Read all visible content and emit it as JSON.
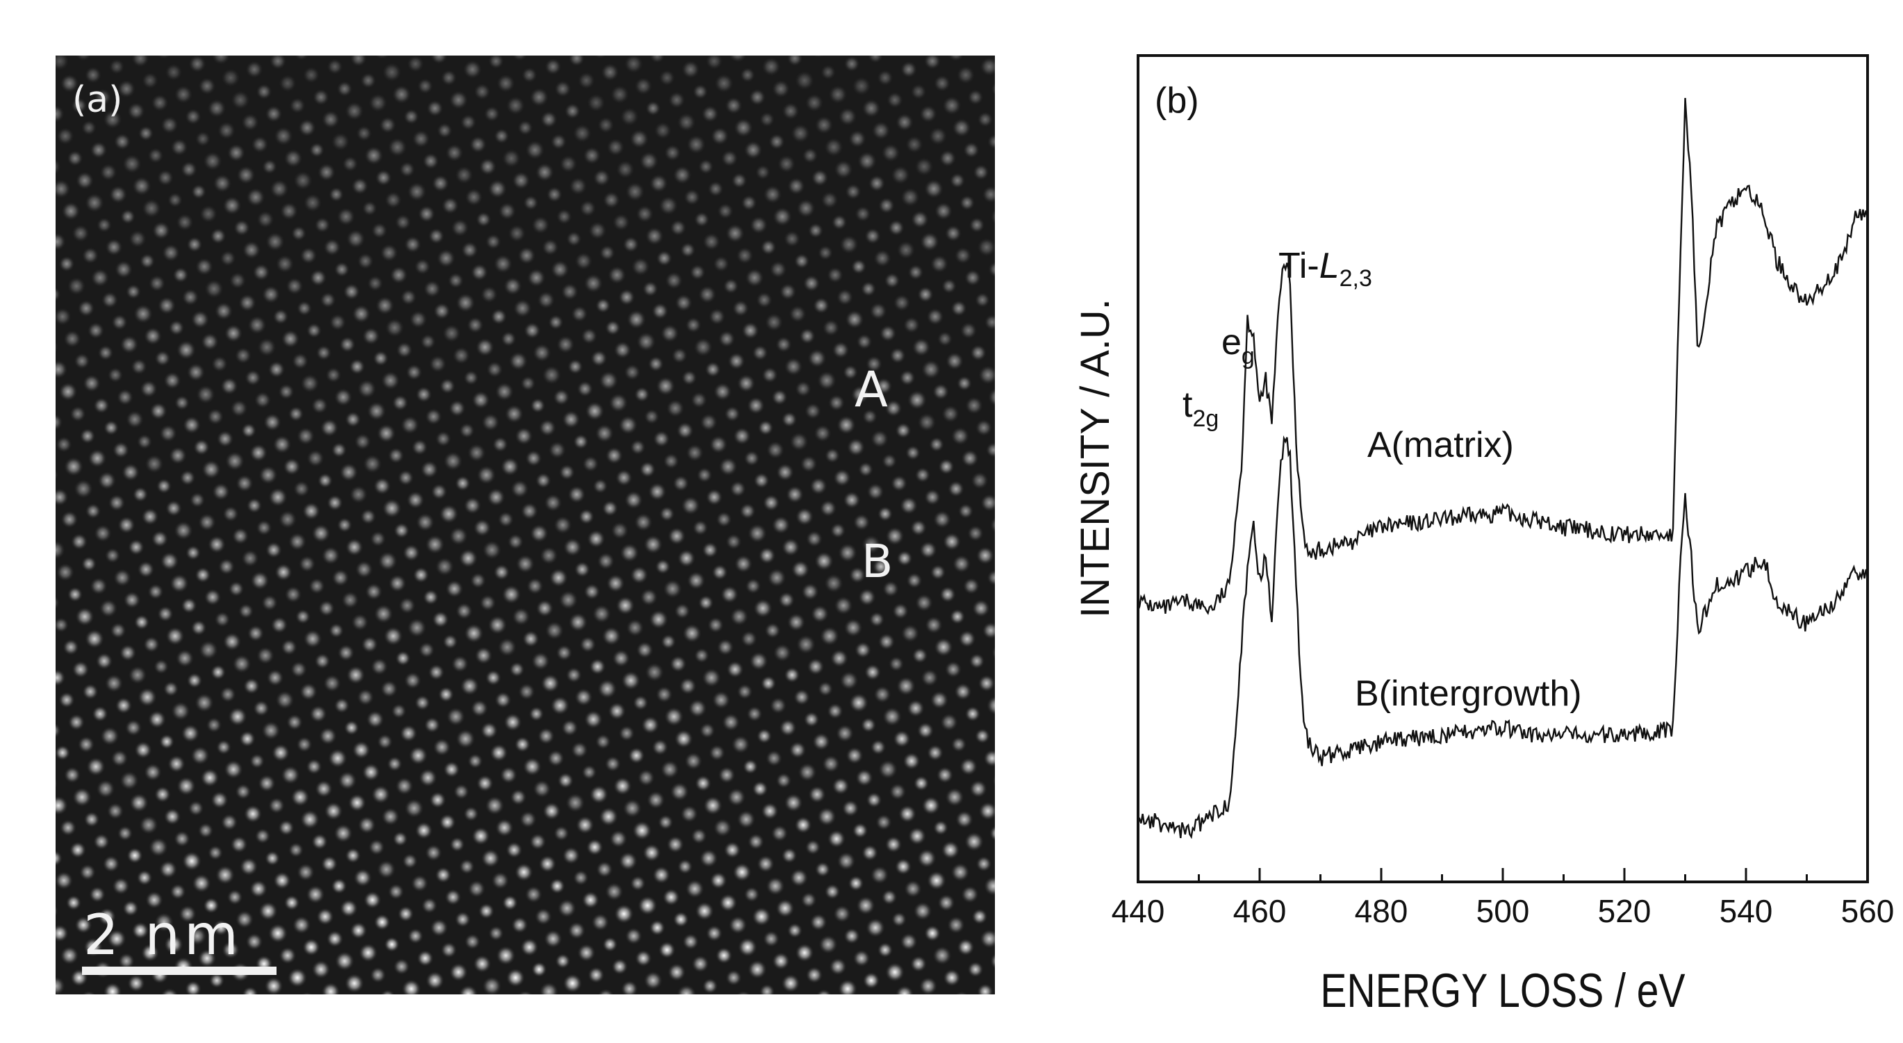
{
  "panel_a": {
    "label": "(a)",
    "region_a": "A",
    "region_b": "B",
    "scale_bar_label": "2  nm"
  },
  "chart_data": {
    "type": "line",
    "panel_label": "(b)",
    "xlabel": "ENERGY  LOSS   /   eV",
    "ylabel": "INTENSITY   /   A.U.",
    "xlim": [
      440,
      560
    ],
    "ylim": [
      0,
      100
    ],
    "xticks": [
      440,
      460,
      480,
      500,
      520,
      540,
      560
    ],
    "yticks_shown": false,
    "series": [
      {
        "name": "A(matrix)",
        "x": [
          440,
          444,
          448,
          452,
          455,
          456,
          457,
          458,
          459,
          460,
          461,
          462,
          463,
          464,
          465,
          466,
          467,
          468,
          470,
          475,
          480,
          490,
          500,
          505,
          510,
          520,
          528,
          529,
          530,
          531,
          532,
          533,
          535,
          538,
          540,
          543,
          545,
          548,
          550,
          553,
          556,
          558,
          560
        ],
        "y": [
          34,
          33,
          34,
          33,
          36,
          45,
          52,
          72,
          70,
          60,
          64,
          58,
          72,
          80,
          77,
          55,
          45,
          40,
          41,
          42,
          44,
          45,
          46,
          45,
          44,
          43,
          43,
          75,
          101,
          90,
          68,
          72,
          84,
          88,
          90,
          86,
          80,
          76,
          74,
          77,
          80,
          86,
          86
        ]
      },
      {
        "name": "B(intergrowth)",
        "x": [
          440,
          444,
          448,
          452,
          455,
          456,
          457,
          458,
          459,
          460,
          461,
          462,
          463,
          464,
          465,
          466,
          467,
          468,
          470,
          475,
          480,
          490,
          500,
          505,
          510,
          520,
          528,
          529,
          530,
          531,
          532,
          533,
          535,
          538,
          540,
          543,
          545,
          548,
          550,
          553,
          556,
          558,
          560
        ],
        "y": [
          5,
          4,
          3,
          5,
          7,
          17,
          28,
          38,
          44,
          37,
          40,
          32,
          48,
          56,
          54,
          36,
          20,
          15,
          13,
          14,
          15,
          16,
          17,
          16,
          16,
          16,
          17,
          36,
          48,
          40,
          30,
          32,
          36,
          37,
          38,
          40,
          34,
          32,
          31,
          33,
          35,
          38,
          38
        ]
      }
    ],
    "annotations": {
      "ti_l23": "Ti-L2,3",
      "eg": "eg",
      "t2g": "t2g",
      "series_a_label": "A(matrix)",
      "series_b_label": "B(intergrowth)"
    }
  }
}
